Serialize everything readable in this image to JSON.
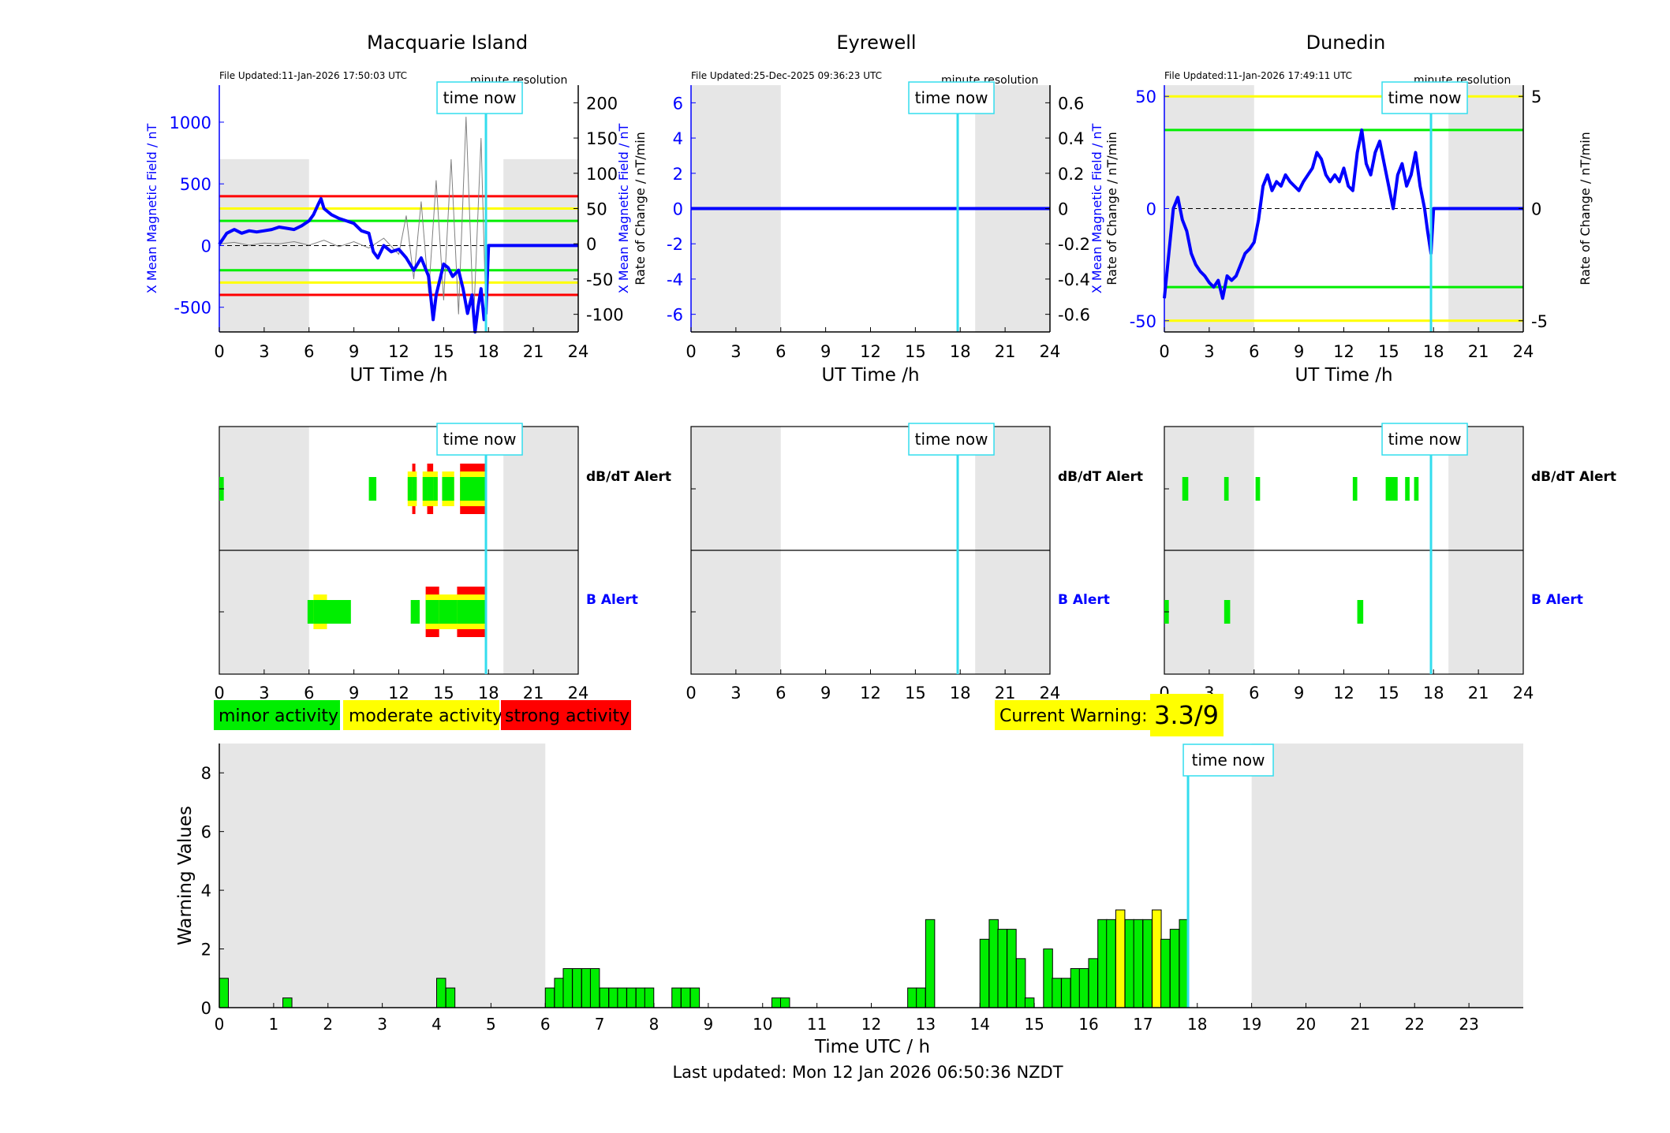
{
  "page": {
    "last_updated": "Last updated: Mon 12 Jan 2026 06:50:36 NZDT",
    "time_now_label": "time now",
    "time_now_hour": 17.83,
    "shaded_periods": [
      [
        0,
        6
      ],
      [
        19,
        24
      ]
    ],
    "x_ticks": [
      0,
      3,
      6,
      9,
      12,
      15,
      18,
      21,
      24
    ],
    "x_label": "UT Time /h",
    "colors": {
      "field": "#0000ff",
      "rate": "#808080",
      "shade": "#e6e6e6",
      "now": "#33ddee",
      "minor": "#00ee00",
      "moderate": "#ffff00",
      "strong": "#ff0000"
    }
  },
  "stations": [
    {
      "name": "Macquarie Island",
      "file_updated": "File Updated:11-Jan-2026 17:50:03 UTC",
      "resolution": "minute resolution",
      "left_label": "X Mean Magnetic Field / nT",
      "right_label": "Rate of Change / nT/min",
      "left_ticks": [
        1000,
        500,
        0,
        -500
      ],
      "right_ticks": [
        "200",
        "150",
        "100",
        "50",
        "0",
        "-50",
        "-100"
      ],
      "threshold_lines": [
        {
          "value": 400,
          "color": "#ff0000"
        },
        {
          "value": 300,
          "color": "#ffff00"
        },
        {
          "value": 200,
          "color": "#00ee00"
        },
        {
          "value": -200,
          "color": "#00ee00"
        },
        {
          "value": -300,
          "color": "#ffff00"
        },
        {
          "value": -400,
          "color": "#ff0000"
        }
      ],
      "db_alert_label": "dB/dT Alert",
      "b_alert_label": "B Alert",
      "db_alert_blocks": [
        {
          "start": 0,
          "end": 0.3,
          "level": 1
        },
        {
          "start": 10,
          "end": 10.5,
          "level": 1
        },
        {
          "start": 12.6,
          "end": 13.2,
          "level": 2
        },
        {
          "start": 12.9,
          "end": 13.1,
          "level": 3
        },
        {
          "start": 13.6,
          "end": 14.6,
          "level": 2
        },
        {
          "start": 13.9,
          "end": 14.3,
          "level": 3
        },
        {
          "start": 14.9,
          "end": 15.7,
          "level": 2
        },
        {
          "start": 16.1,
          "end": 17.9,
          "level": 3
        }
      ],
      "b_alert_blocks": [
        {
          "start": 5.9,
          "end": 8.8,
          "level": 1
        },
        {
          "start": 6.3,
          "end": 7.2,
          "level": 2
        },
        {
          "start": 12.8,
          "end": 13.4,
          "level": 1
        },
        {
          "start": 13.8,
          "end": 14.7,
          "level": 3
        },
        {
          "start": 14.7,
          "end": 15.9,
          "level": 2
        },
        {
          "start": 15.9,
          "end": 17.9,
          "level": 3
        }
      ]
    },
    {
      "name": "Eyrewell",
      "file_updated": "File Updated:25-Dec-2025 09:36:23 UTC",
      "resolution": "minute resolution",
      "left_label": "X Mean Magnetic Field / nT",
      "right_label": "Rate of Change / nT/min",
      "left_ticks": [
        6,
        4,
        2,
        0,
        -2,
        -4,
        -6
      ],
      "right_ticks": [
        "0.6",
        "0.4",
        "0.2",
        "0",
        "-0.2",
        "-0.4",
        "-0.6"
      ],
      "threshold_lines": [],
      "db_alert_label": "dB/dT Alert",
      "b_alert_label": "B Alert",
      "db_alert_blocks": [],
      "b_alert_blocks": []
    },
    {
      "name": "Dunedin",
      "file_updated": "File Updated:11-Jan-2026 17:49:11 UTC",
      "resolution": "minute resolution",
      "left_label": "X Mean Magnetic Field / nT",
      "right_label": "Rate of Change / nT/min",
      "left_ticks": [
        50,
        0,
        -50
      ],
      "right_ticks": [
        "5",
        "0",
        "-5"
      ],
      "threshold_lines": [
        {
          "value": 50,
          "color": "#ffff00"
        },
        {
          "value": 35,
          "color": "#00ee00"
        },
        {
          "value": -35,
          "color": "#00ee00"
        },
        {
          "value": -50,
          "color": "#ffff00"
        }
      ],
      "db_alert_label": "dB/dT Alert",
      "b_alert_label": "B Alert",
      "db_alert_blocks": [
        {
          "start": 1.2,
          "end": 1.6,
          "level": 1
        },
        {
          "start": 4,
          "end": 4.3,
          "level": 1
        },
        {
          "start": 6.1,
          "end": 6.4,
          "level": 1
        },
        {
          "start": 12.6,
          "end": 12.9,
          "level": 1
        },
        {
          "start": 14.8,
          "end": 15.6,
          "level": 1
        },
        {
          "start": 16.1,
          "end": 16.4,
          "level": 1
        },
        {
          "start": 16.7,
          "end": 17,
          "level": 1
        }
      ],
      "b_alert_blocks": [
        {
          "start": 0,
          "end": 0.3,
          "level": 1
        },
        {
          "start": 4,
          "end": 4.4,
          "level": 1
        },
        {
          "start": 12.9,
          "end": 13.3,
          "level": 1
        }
      ]
    }
  ],
  "legend": {
    "minor": "minor activity",
    "moderate": "moderate activity",
    "strong": "strong activity"
  },
  "current_warning": {
    "label": "Current Warning:",
    "value": "3.3/9"
  },
  "chart_data": [
    {
      "type": "line",
      "title": "Macquarie Island",
      "xlabel": "UT Time /h",
      "ylabel": "X Mean Magnetic Field / nT",
      "y2label": "Rate of Change / nT/min",
      "xlim": [
        0,
        24
      ],
      "ylim": [
        -700,
        1300
      ],
      "y2lim": [
        -125,
        225
      ],
      "series": [
        {
          "name": "X Mean Magnetic Field",
          "x": [
            0,
            0.5,
            1,
            1.5,
            2,
            2.5,
            3,
            3.5,
            4,
            4.5,
            5,
            5.5,
            6,
            6.3,
            6.6,
            6.8,
            7,
            7.5,
            8,
            8.5,
            9,
            9.5,
            10,
            10.3,
            10.6,
            11,
            11.5,
            12,
            12.5,
            13,
            13.5,
            14,
            14.3,
            14.5,
            14.8,
            15,
            15.3,
            15.6,
            16,
            16.3,
            16.6,
            16.9,
            17.1,
            17.3,
            17.5,
            17.7,
            17.83,
            18,
            24
          ],
          "values": [
            10,
            100,
            130,
            100,
            120,
            110,
            120,
            130,
            150,
            140,
            130,
            160,
            200,
            250,
            330,
            380,
            300,
            250,
            220,
            200,
            180,
            120,
            100,
            -50,
            -100,
            0,
            -50,
            -30,
            -100,
            -200,
            -100,
            -250,
            -600,
            -400,
            -250,
            -150,
            -180,
            -250,
            -200,
            -350,
            -550,
            -400,
            -700,
            -500,
            -350,
            -600,
            -550,
            0,
            0
          ]
        },
        {
          "name": "Rate of Change",
          "x": [
            0,
            1,
            2,
            3,
            4,
            5,
            6,
            7,
            8,
            9,
            10,
            11,
            12,
            12.5,
            13,
            13.5,
            14,
            14.5,
            15,
            15.5,
            16,
            16.5,
            17,
            17.5,
            17.8
          ],
          "values": [
            0,
            2,
            -2,
            1,
            0,
            3,
            -2,
            5,
            -4,
            3,
            -6,
            8,
            -15,
            40,
            -50,
            60,
            -70,
            90,
            -80,
            120,
            -100,
            180,
            -110,
            150,
            -80
          ]
        }
      ],
      "thresholds": [
        400,
        300,
        200,
        -200,
        -300,
        -400
      ]
    },
    {
      "type": "line",
      "title": "Eyrewell",
      "xlabel": "UT Time /h",
      "ylabel": "X Mean Magnetic Field / nT",
      "y2label": "Rate of Change / nT/min",
      "xlim": [
        0,
        24
      ],
      "ylim": [
        -7,
        7
      ],
      "y2lim": [
        -0.7,
        0.7
      ],
      "series": [
        {
          "name": "X Mean Magnetic Field",
          "x": [
            0,
            24
          ],
          "values": [
            0,
            0
          ]
        }
      ]
    },
    {
      "type": "line",
      "title": "Dunedin",
      "xlabel": "UT Time /h",
      "ylabel": "X Mean Magnetic Field / nT",
      "y2label": "Rate of Change / nT/min",
      "xlim": [
        0,
        24
      ],
      "ylim": [
        -55,
        55
      ],
      "y2lim": [
        -5.5,
        5.5
      ],
      "series": [
        {
          "name": "X Mean Magnetic Field",
          "x": [
            0,
            0.3,
            0.6,
            0.9,
            1.2,
            1.5,
            1.8,
            2.1,
            2.4,
            2.7,
            3,
            3.3,
            3.6,
            3.9,
            4.2,
            4.5,
            4.8,
            5.1,
            5.4,
            5.7,
            6,
            6.3,
            6.6,
            6.9,
            7.2,
            7.5,
            7.8,
            8.1,
            8.4,
            8.7,
            9,
            9.3,
            9.6,
            9.9,
            10.2,
            10.5,
            10.8,
            11.1,
            11.4,
            11.7,
            12,
            12.3,
            12.6,
            12.9,
            13.2,
            13.5,
            13.8,
            14.1,
            14.4,
            14.7,
            15,
            15.3,
            15.6,
            15.9,
            16.2,
            16.5,
            16.8,
            17.1,
            17.4,
            17.6,
            17.83,
            18,
            24
          ],
          "values": [
            -40,
            -20,
            0,
            5,
            -5,
            -10,
            -20,
            -25,
            -28,
            -30,
            -33,
            -35,
            -32,
            -40,
            -30,
            -32,
            -30,
            -25,
            -20,
            -18,
            -15,
            -5,
            10,
            15,
            8,
            12,
            10,
            15,
            12,
            10,
            8,
            12,
            15,
            18,
            25,
            22,
            15,
            12,
            15,
            12,
            18,
            10,
            8,
            25,
            35,
            20,
            15,
            25,
            30,
            20,
            10,
            0,
            15,
            20,
            10,
            15,
            25,
            10,
            0,
            -10,
            -20,
            0,
            0
          ]
        }
      ],
      "thresholds": [
        50,
        35,
        -35,
        -50
      ]
    },
    {
      "type": "bar",
      "title": "",
      "xlabel": "Time UTC / h",
      "ylabel": "Warning Values",
      "xlim": [
        0,
        24
      ],
      "ylim": [
        0,
        9
      ],
      "x_ticks": [
        0,
        1,
        2,
        3,
        4,
        5,
        6,
        7,
        8,
        9,
        10,
        11,
        12,
        13,
        14,
        15,
        16,
        17,
        18,
        19,
        20,
        21,
        22,
        23
      ],
      "y_ticks": [
        0,
        2,
        4,
        6,
        8
      ],
      "bar_width_h": 0.1667,
      "bars": [
        {
          "x": 0,
          "value": 1,
          "level": 1
        },
        {
          "x": 1.17,
          "value": 0.33,
          "level": 1
        },
        {
          "x": 4,
          "value": 1,
          "level": 1
        },
        {
          "x": 4.17,
          "value": 0.67,
          "level": 1
        },
        {
          "x": 6,
          "value": 0.67,
          "level": 1
        },
        {
          "x": 6.17,
          "value": 1,
          "level": 1
        },
        {
          "x": 6.33,
          "value": 1.33,
          "level": 1
        },
        {
          "x": 6.5,
          "value": 1.33,
          "level": 1
        },
        {
          "x": 6.67,
          "value": 1.33,
          "level": 1
        },
        {
          "x": 6.83,
          "value": 1.33,
          "level": 1
        },
        {
          "x": 7,
          "value": 0.67,
          "level": 1
        },
        {
          "x": 7.17,
          "value": 0.67,
          "level": 1
        },
        {
          "x": 7.33,
          "value": 0.67,
          "level": 1
        },
        {
          "x": 7.5,
          "value": 0.67,
          "level": 1
        },
        {
          "x": 7.67,
          "value": 0.67,
          "level": 1
        },
        {
          "x": 7.83,
          "value": 0.67,
          "level": 1
        },
        {
          "x": 8.33,
          "value": 0.67,
          "level": 1
        },
        {
          "x": 8.5,
          "value": 0.67,
          "level": 1
        },
        {
          "x": 8.67,
          "value": 0.67,
          "level": 1
        },
        {
          "x": 10.17,
          "value": 0.33,
          "level": 1
        },
        {
          "x": 10.33,
          "value": 0.33,
          "level": 1
        },
        {
          "x": 12.67,
          "value": 0.67,
          "level": 1
        },
        {
          "x": 12.83,
          "value": 0.67,
          "level": 1
        },
        {
          "x": 13,
          "value": 3,
          "level": 1
        },
        {
          "x": 14,
          "value": 2.33,
          "level": 1
        },
        {
          "x": 14.17,
          "value": 3,
          "level": 1
        },
        {
          "x": 14.33,
          "value": 2.67,
          "level": 1
        },
        {
          "x": 14.5,
          "value": 2.67,
          "level": 1
        },
        {
          "x": 14.67,
          "value": 1.67,
          "level": 1
        },
        {
          "x": 14.83,
          "value": 0.33,
          "level": 1
        },
        {
          "x": 15.17,
          "value": 2,
          "level": 1
        },
        {
          "x": 15.33,
          "value": 1,
          "level": 1
        },
        {
          "x": 15.5,
          "value": 1,
          "level": 1
        },
        {
          "x": 15.67,
          "value": 1.33,
          "level": 1
        },
        {
          "x": 15.83,
          "value": 1.33,
          "level": 1
        },
        {
          "x": 16,
          "value": 1.67,
          "level": 1
        },
        {
          "x": 16.17,
          "value": 3,
          "level": 1
        },
        {
          "x": 16.33,
          "value": 3,
          "level": 1
        },
        {
          "x": 16.5,
          "value": 3.33,
          "level": 2
        },
        {
          "x": 16.67,
          "value": 3,
          "level": 1
        },
        {
          "x": 16.83,
          "value": 3,
          "level": 1
        },
        {
          "x": 17,
          "value": 3,
          "level": 1
        },
        {
          "x": 17.17,
          "value": 3.33,
          "level": 2
        },
        {
          "x": 17.33,
          "value": 2.33,
          "level": 1
        },
        {
          "x": 17.5,
          "value": 2.67,
          "level": 1
        },
        {
          "x": 17.67,
          "value": 3,
          "level": 1
        }
      ]
    }
  ]
}
